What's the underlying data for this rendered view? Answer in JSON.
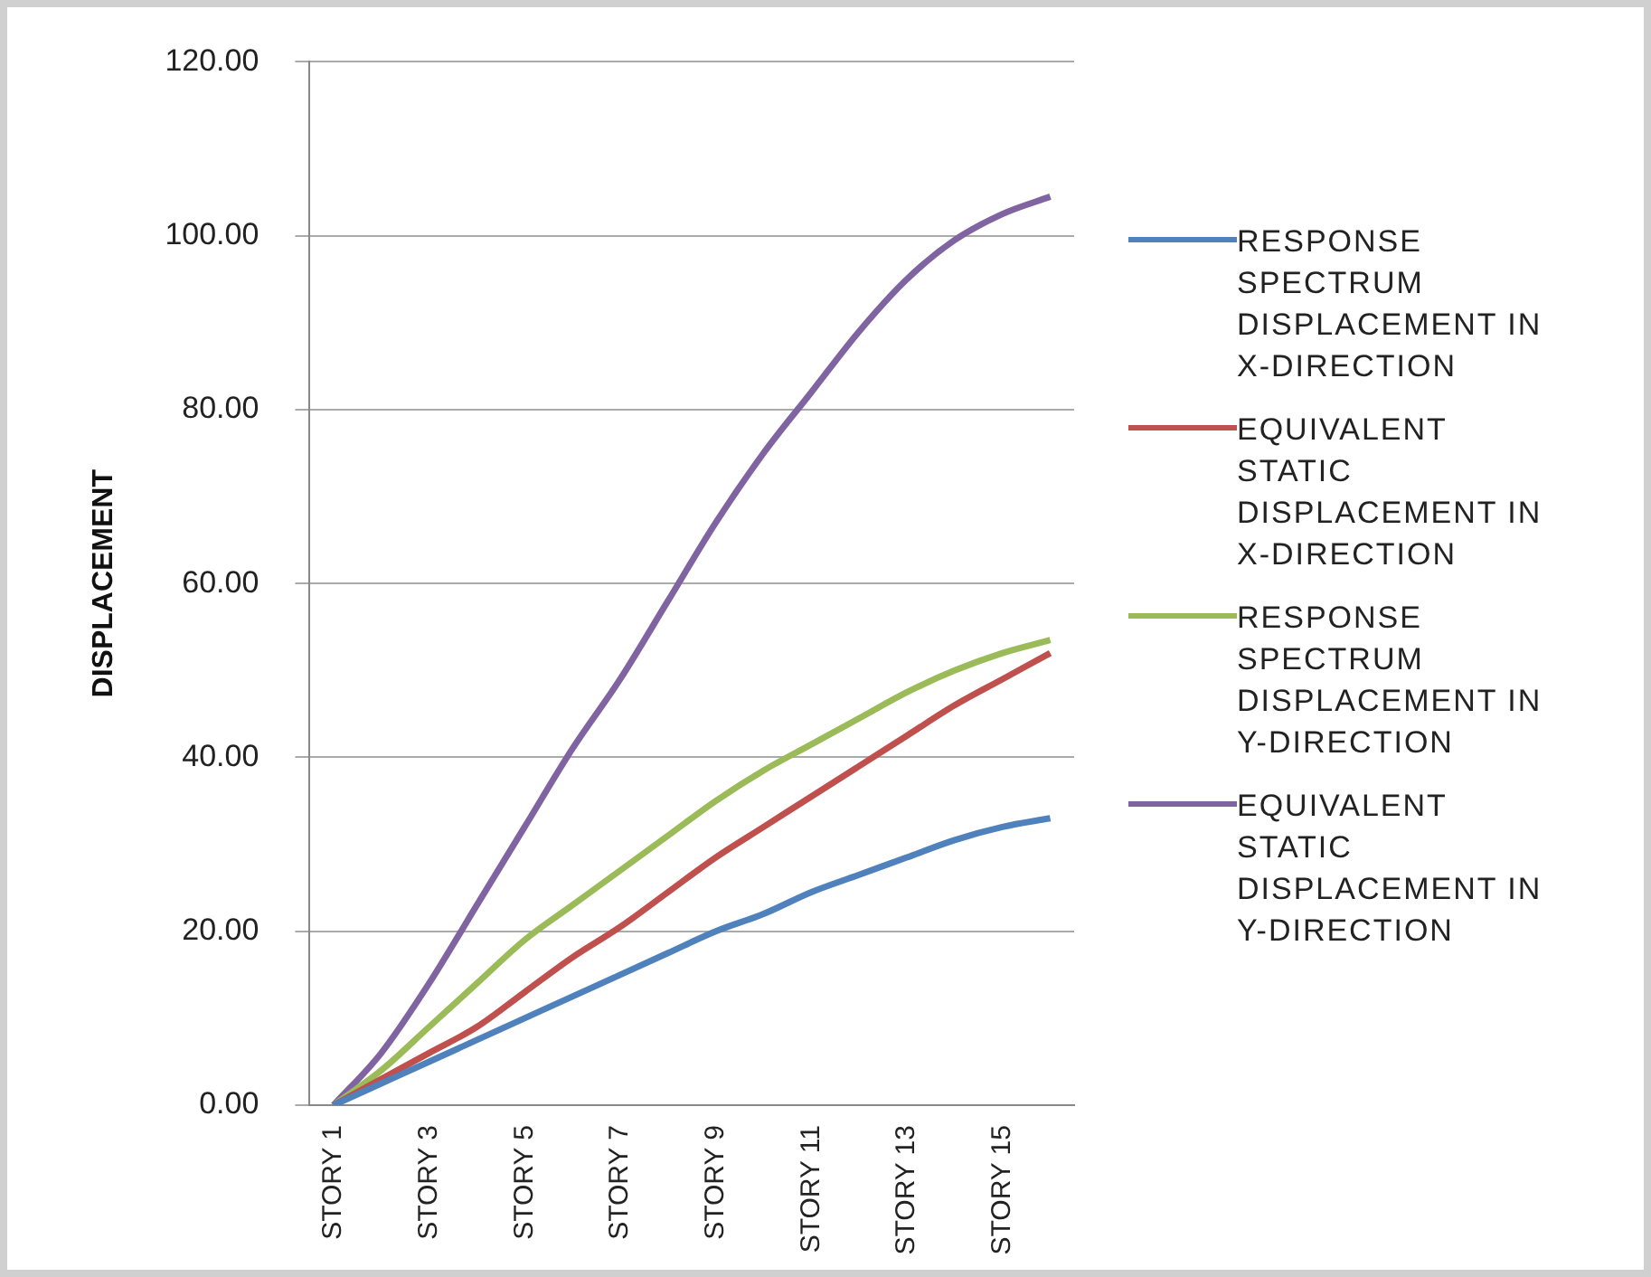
{
  "chart_data": {
    "type": "line",
    "ylabel": "DISPLACEMENT",
    "categories": [
      "STORY 1",
      null,
      "STORY 3",
      null,
      "STORY 5",
      null,
      "STORY 7",
      null,
      "STORY 9",
      null,
      "STORY 11",
      null,
      "STORY 13",
      null,
      "STORY 15",
      null
    ],
    "series": [
      {
        "name": "RESPONSE SPECTRUM DISPLACEMENT IN X-DIRECTION",
        "color": "#4f81bd",
        "values": [
          0,
          2.5,
          5,
          7.5,
          10,
          12.5,
          15,
          17.5,
          20,
          22,
          24.5,
          26.5,
          28.5,
          30.5,
          32,
          33
        ]
      },
      {
        "name": "EQUIVALENT STATIC DISPLACEMENT IN X-DIRECTION",
        "color": "#c0504d",
        "values": [
          0,
          3,
          6,
          9,
          13,
          17,
          20.5,
          24.5,
          28.5,
          32,
          35.5,
          39,
          42.5,
          46,
          49,
          52
        ]
      },
      {
        "name": "RESPONSE SPECTRUM DISPLACEMENT IN Y-DIRECTION",
        "color": "#9bbb59",
        "values": [
          0,
          4,
          9,
          14,
          19,
          23,
          27,
          31,
          35,
          38.5,
          41.5,
          44.5,
          47.5,
          50,
          52,
          53.5
        ]
      },
      {
        "name": "EQUIVALENT STATIC DISPLACEMENT IN Y-DIRECTION",
        "color": "#8064a2",
        "values": [
          0,
          6,
          14,
          23,
          32,
          41,
          49,
          58,
          67,
          75,
          82,
          89,
          95,
          99.5,
          102.5,
          104.5
        ]
      }
    ],
    "ylim": [
      0,
      120
    ],
    "yticks": [
      {
        "value": 0,
        "label": "0.00"
      },
      {
        "value": 20,
        "label": "20.00"
      },
      {
        "value": 40,
        "label": "40.00"
      },
      {
        "value": 60,
        "label": "60.00"
      },
      {
        "value": 80,
        "label": "80.00"
      },
      {
        "value": 100,
        "label": "100.00"
      },
      {
        "value": 120,
        "label": "120.00"
      }
    ],
    "grid": "y",
    "legend": "right",
    "marker": "none",
    "line_style": "solid"
  }
}
